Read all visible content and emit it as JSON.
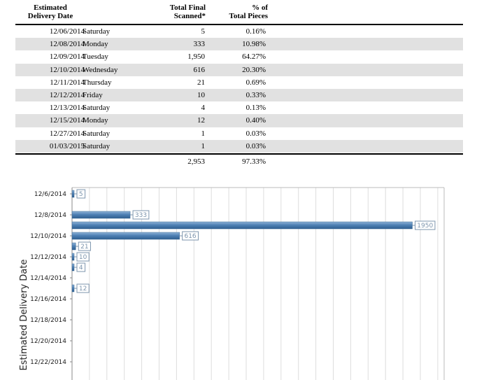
{
  "table": {
    "headers": {
      "date_line1": "Estimated",
      "date_line2": "Delivery Date",
      "scanned_line1": "Total Final",
      "scanned_line2": "Scanned*",
      "pct_line1": "% of",
      "pct_line2": "Total Pieces"
    },
    "rows": [
      {
        "date": "12/06/2014",
        "day": "Saturday",
        "scanned": "5",
        "pct": "0.16%"
      },
      {
        "date": "12/08/2014",
        "day": "Monday",
        "scanned": "333",
        "pct": "10.98%"
      },
      {
        "date": "12/09/2014",
        "day": "Tuesday",
        "scanned": "1,950",
        "pct": "64.27%"
      },
      {
        "date": "12/10/2014",
        "day": "Wednesday",
        "scanned": "616",
        "pct": "20.30%"
      },
      {
        "date": "12/11/2014",
        "day": "Thursday",
        "scanned": "21",
        "pct": "0.69%"
      },
      {
        "date": "12/12/2014",
        "day": "Friday",
        "scanned": "10",
        "pct": "0.33%"
      },
      {
        "date": "12/13/2014",
        "day": "Saturday",
        "scanned": "4",
        "pct": "0.13%"
      },
      {
        "date": "12/15/2014",
        "day": "Monday",
        "scanned": "12",
        "pct": "0.40%"
      },
      {
        "date": "12/27/2014",
        "day": "Saturday",
        "scanned": "1",
        "pct": "0.03%"
      },
      {
        "date": "01/03/2015",
        "day": "Saturday",
        "scanned": "1",
        "pct": "0.03%"
      }
    ],
    "totals": {
      "scanned": "2,953",
      "pct": "97.33%"
    }
  },
  "chart_data": {
    "type": "bar",
    "orientation": "horizontal",
    "ylabel": "Estimated Delivery Date",
    "xlabel": "",
    "categories": [
      "12/6/2014",
      "12/8/2014",
      "12/9/2014",
      "12/10/2014",
      "12/11/2014",
      "12/12/2014",
      "12/13/2014",
      "12/15/2014"
    ],
    "values": [
      5,
      333,
      1950,
      616,
      21,
      10,
      4,
      12
    ],
    "data_labels": [
      "5",
      "333",
      "1950",
      "616",
      "21",
      "10",
      "4",
      "12"
    ],
    "y_tick_labels": [
      "12/6/2014",
      "12/8/2014",
      "12/10/2014",
      "12/12/2014",
      "12/14/2014",
      "12/16/2014",
      "12/18/2014",
      "12/20/2014",
      "12/22/2014"
    ],
    "xlim": [
      0,
      2100
    ],
    "grid": true,
    "bar_color": "#4f81b5",
    "label_color": "#7d95ad",
    "grid_color": "#dddddd"
  }
}
